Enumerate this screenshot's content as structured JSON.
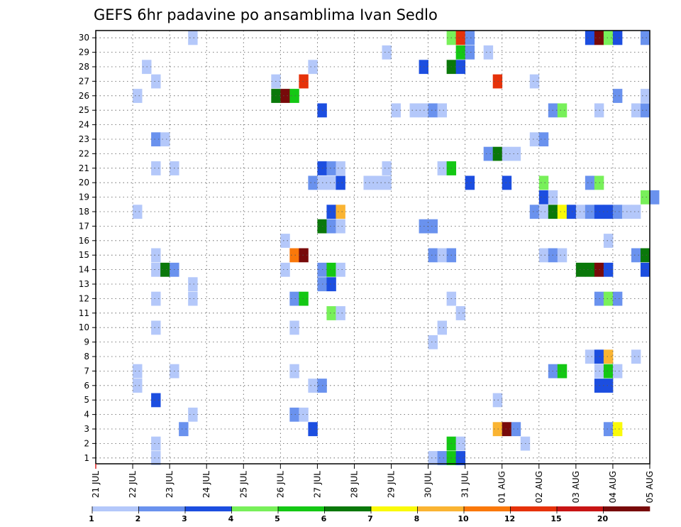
{
  "chart_data": {
    "type": "heatmap",
    "title": "GEFS 6hr padavine po ansamblima Ivan Sedlo",
    "xlabel": "",
    "ylabel": "",
    "x_tick_labels": [
      "21 JUL",
      "22 JUL",
      "23 JUL",
      "24 JUL",
      "25 JUL",
      "26 JUL",
      "27 JUL",
      "28 JUL",
      "29 JUL",
      "30 JUL",
      "31 JUL",
      "01 AUG",
      "02 AUG",
      "03 AUG",
      "04 AUG",
      "05 AUG"
    ],
    "y_tick_labels": [
      "1",
      "2",
      "3",
      "4",
      "5",
      "6",
      "7",
      "8",
      "9",
      "10",
      "11",
      "12",
      "13",
      "14",
      "15",
      "16",
      "17",
      "18",
      "19",
      "20",
      "21",
      "22",
      "23",
      "24",
      "25",
      "26",
      "27",
      "28",
      "29",
      "30"
    ],
    "time_range_days": [
      0,
      15
    ],
    "time_step_hours": 6,
    "ylim": [
      0,
      30
    ],
    "grid": true,
    "legend": {
      "placement": "bottom",
      "thresholds": [
        "1",
        "2",
        "3",
        "4",
        "5",
        "6",
        "7",
        "8",
        "10",
        "12",
        "15",
        "20"
      ],
      "colors": [
        "#b4c8fa",
        "#6a92ee",
        "#1c4ee0",
        "#78f05a",
        "#14c814",
        "#0a780a",
        "#fafa0a",
        "#fab432",
        "#fa780a",
        "#e6320a",
        "#c81414",
        "#780a0a"
      ]
    },
    "cells_note": "each cell: [member, day offset from 21 JUL 00Z, color class 1-12]",
    "cells": [
      [
        30,
        2.5,
        1
      ],
      [
        30,
        9.5,
        4
      ],
      [
        30,
        9.75,
        10
      ],
      [
        30,
        10,
        2
      ],
      [
        30,
        13.25,
        3
      ],
      [
        30,
        13.5,
        12
      ],
      [
        30,
        13.75,
        4
      ],
      [
        30,
        14,
        3
      ],
      [
        30,
        14.75,
        2
      ],
      [
        29,
        7.75,
        1
      ],
      [
        29,
        9.75,
        5
      ],
      [
        29,
        10,
        2
      ],
      [
        29,
        10.5,
        1
      ],
      [
        28,
        1.25,
        1
      ],
      [
        28,
        5.75,
        1
      ],
      [
        28,
        8.75,
        3
      ],
      [
        28,
        9.5,
        6
      ],
      [
        28,
        9.75,
        3
      ],
      [
        27,
        1.5,
        1
      ],
      [
        27,
        4.75,
        1
      ],
      [
        27,
        5.5,
        10
      ],
      [
        27,
        10.75,
        10
      ],
      [
        27,
        11.75,
        1
      ],
      [
        26,
        1,
        1
      ],
      [
        26,
        4.75,
        6
      ],
      [
        26,
        5,
        12
      ],
      [
        26,
        5.25,
        5
      ],
      [
        26,
        14,
        2
      ],
      [
        26,
        14.75,
        1
      ],
      [
        25,
        6,
        3
      ],
      [
        25,
        8,
        1
      ],
      [
        25,
        8.5,
        1
      ],
      [
        25,
        8.75,
        1
      ],
      [
        25,
        9,
        2
      ],
      [
        25,
        9.25,
        1
      ],
      [
        25,
        12.25,
        2
      ],
      [
        25,
        12.5,
        4
      ],
      [
        25,
        13.5,
        1
      ],
      [
        25,
        14.5,
        1
      ],
      [
        25,
        14.75,
        2
      ],
      [
        23,
        1.5,
        2
      ],
      [
        23,
        1.75,
        1
      ],
      [
        23,
        11.75,
        1
      ],
      [
        23,
        12,
        2
      ],
      [
        22,
        10.5,
        2
      ],
      [
        22,
        10.75,
        6
      ],
      [
        22,
        11,
        1
      ],
      [
        22,
        11.25,
        1
      ],
      [
        21,
        1.5,
        1
      ],
      [
        21,
        2,
        1
      ],
      [
        21,
        6,
        3
      ],
      [
        21,
        6.25,
        2
      ],
      [
        21,
        6.5,
        1
      ],
      [
        21,
        7.75,
        1
      ],
      [
        21,
        9.25,
        1
      ],
      [
        21,
        9.5,
        5
      ],
      [
        20,
        5.75,
        2
      ],
      [
        20,
        6,
        1
      ],
      [
        20,
        6.25,
        1
      ],
      [
        20,
        6.5,
        3
      ],
      [
        20,
        7.25,
        1
      ],
      [
        20,
        7.5,
        1
      ],
      [
        20,
        7.75,
        1
      ],
      [
        20,
        10,
        3
      ],
      [
        20,
        11,
        3
      ],
      [
        20,
        12,
        4
      ],
      [
        20,
        13.25,
        2
      ],
      [
        20,
        13.5,
        4
      ],
      [
        19,
        12,
        3
      ],
      [
        19,
        12.25,
        1
      ],
      [
        19,
        14.75,
        4
      ],
      [
        19,
        15,
        2
      ],
      [
        18,
        1,
        1
      ],
      [
        18,
        6.25,
        3
      ],
      [
        18,
        6.5,
        8
      ],
      [
        18,
        11.75,
        2
      ],
      [
        18,
        12,
        1
      ],
      [
        18,
        12.25,
        6
      ],
      [
        18,
        12.5,
        7
      ],
      [
        18,
        12.75,
        3
      ],
      [
        18,
        13,
        1
      ],
      [
        18,
        13.25,
        2
      ],
      [
        18,
        13.5,
        3
      ],
      [
        18,
        13.75,
        3
      ],
      [
        18,
        14,
        2
      ],
      [
        18,
        14.25,
        1
      ],
      [
        18,
        14.5,
        1
      ],
      [
        17,
        6,
        6
      ],
      [
        17,
        6.25,
        2
      ],
      [
        17,
        6.5,
        1
      ],
      [
        17,
        8.75,
        2
      ],
      [
        17,
        9,
        2
      ],
      [
        16,
        5,
        1
      ],
      [
        16,
        13.75,
        1
      ],
      [
        15,
        1.5,
        1
      ],
      [
        15,
        5.25,
        9
      ],
      [
        15,
        5.5,
        12
      ],
      [
        15,
        9,
        2
      ],
      [
        15,
        9.25,
        1
      ],
      [
        15,
        9.5,
        2
      ],
      [
        15,
        12,
        1
      ],
      [
        15,
        12.25,
        2
      ],
      [
        15,
        12.5,
        1
      ],
      [
        15,
        14.5,
        2
      ],
      [
        15,
        14.75,
        6
      ],
      [
        14,
        1.5,
        1
      ],
      [
        14,
        1.75,
        6
      ],
      [
        14,
        2,
        2
      ],
      [
        14,
        5,
        1
      ],
      [
        14,
        6,
        2
      ],
      [
        14,
        6.25,
        5
      ],
      [
        14,
        6.5,
        1
      ],
      [
        14,
        13,
        6
      ],
      [
        14,
        13.25,
        6
      ],
      [
        14,
        13.5,
        12
      ],
      [
        14,
        13.75,
        3
      ],
      [
        14,
        14.75,
        3
      ],
      [
        13,
        2.5,
        1
      ],
      [
        13,
        6,
        2
      ],
      [
        13,
        6.25,
        3
      ],
      [
        12,
        1.5,
        1
      ],
      [
        12,
        2.5,
        1
      ],
      [
        12,
        5.25,
        2
      ],
      [
        12,
        5.5,
        5
      ],
      [
        12,
        9.5,
        1
      ],
      [
        12,
        13.5,
        2
      ],
      [
        12,
        13.75,
        4
      ],
      [
        12,
        14,
        2
      ],
      [
        11,
        6.25,
        4
      ],
      [
        11,
        6.5,
        1
      ],
      [
        11,
        9.75,
        1
      ],
      [
        10,
        1.5,
        1
      ],
      [
        10,
        5.25,
        1
      ],
      [
        10,
        9.25,
        1
      ],
      [
        9,
        9,
        1
      ],
      [
        8,
        13.25,
        1
      ],
      [
        8,
        13.5,
        3
      ],
      [
        8,
        13.75,
        8
      ],
      [
        8,
        14.5,
        1
      ],
      [
        7,
        1,
        1
      ],
      [
        7,
        2,
        1
      ],
      [
        7,
        5.25,
        1
      ],
      [
        7,
        12.25,
        2
      ],
      [
        7,
        12.5,
        5
      ],
      [
        7,
        13.5,
        1
      ],
      [
        7,
        13.75,
        5
      ],
      [
        7,
        14,
        1
      ],
      [
        6,
        1,
        1
      ],
      [
        6,
        5.75,
        1
      ],
      [
        6,
        6,
        2
      ],
      [
        6,
        13.5,
        3
      ],
      [
        6,
        13.75,
        3
      ],
      [
        5,
        1.5,
        3
      ],
      [
        5,
        10.75,
        1
      ],
      [
        4,
        2.5,
        1
      ],
      [
        4,
        5.25,
        2
      ],
      [
        4,
        5.5,
        1
      ],
      [
        3,
        2.25,
        2
      ],
      [
        3,
        5.75,
        3
      ],
      [
        3,
        10.75,
        8
      ],
      [
        3,
        11,
        12
      ],
      [
        3,
        11.25,
        2
      ],
      [
        3,
        13.75,
        2
      ],
      [
        3,
        14,
        7
      ],
      [
        2,
        1.5,
        1
      ],
      [
        2,
        9.5,
        5
      ],
      [
        2,
        9.75,
        1
      ],
      [
        2,
        11.5,
        1
      ],
      [
        1,
        1.5,
        1
      ],
      [
        1,
        9,
        1
      ],
      [
        1,
        9.25,
        2
      ],
      [
        1,
        9.5,
        5
      ],
      [
        1,
        9.75,
        3
      ]
    ]
  }
}
